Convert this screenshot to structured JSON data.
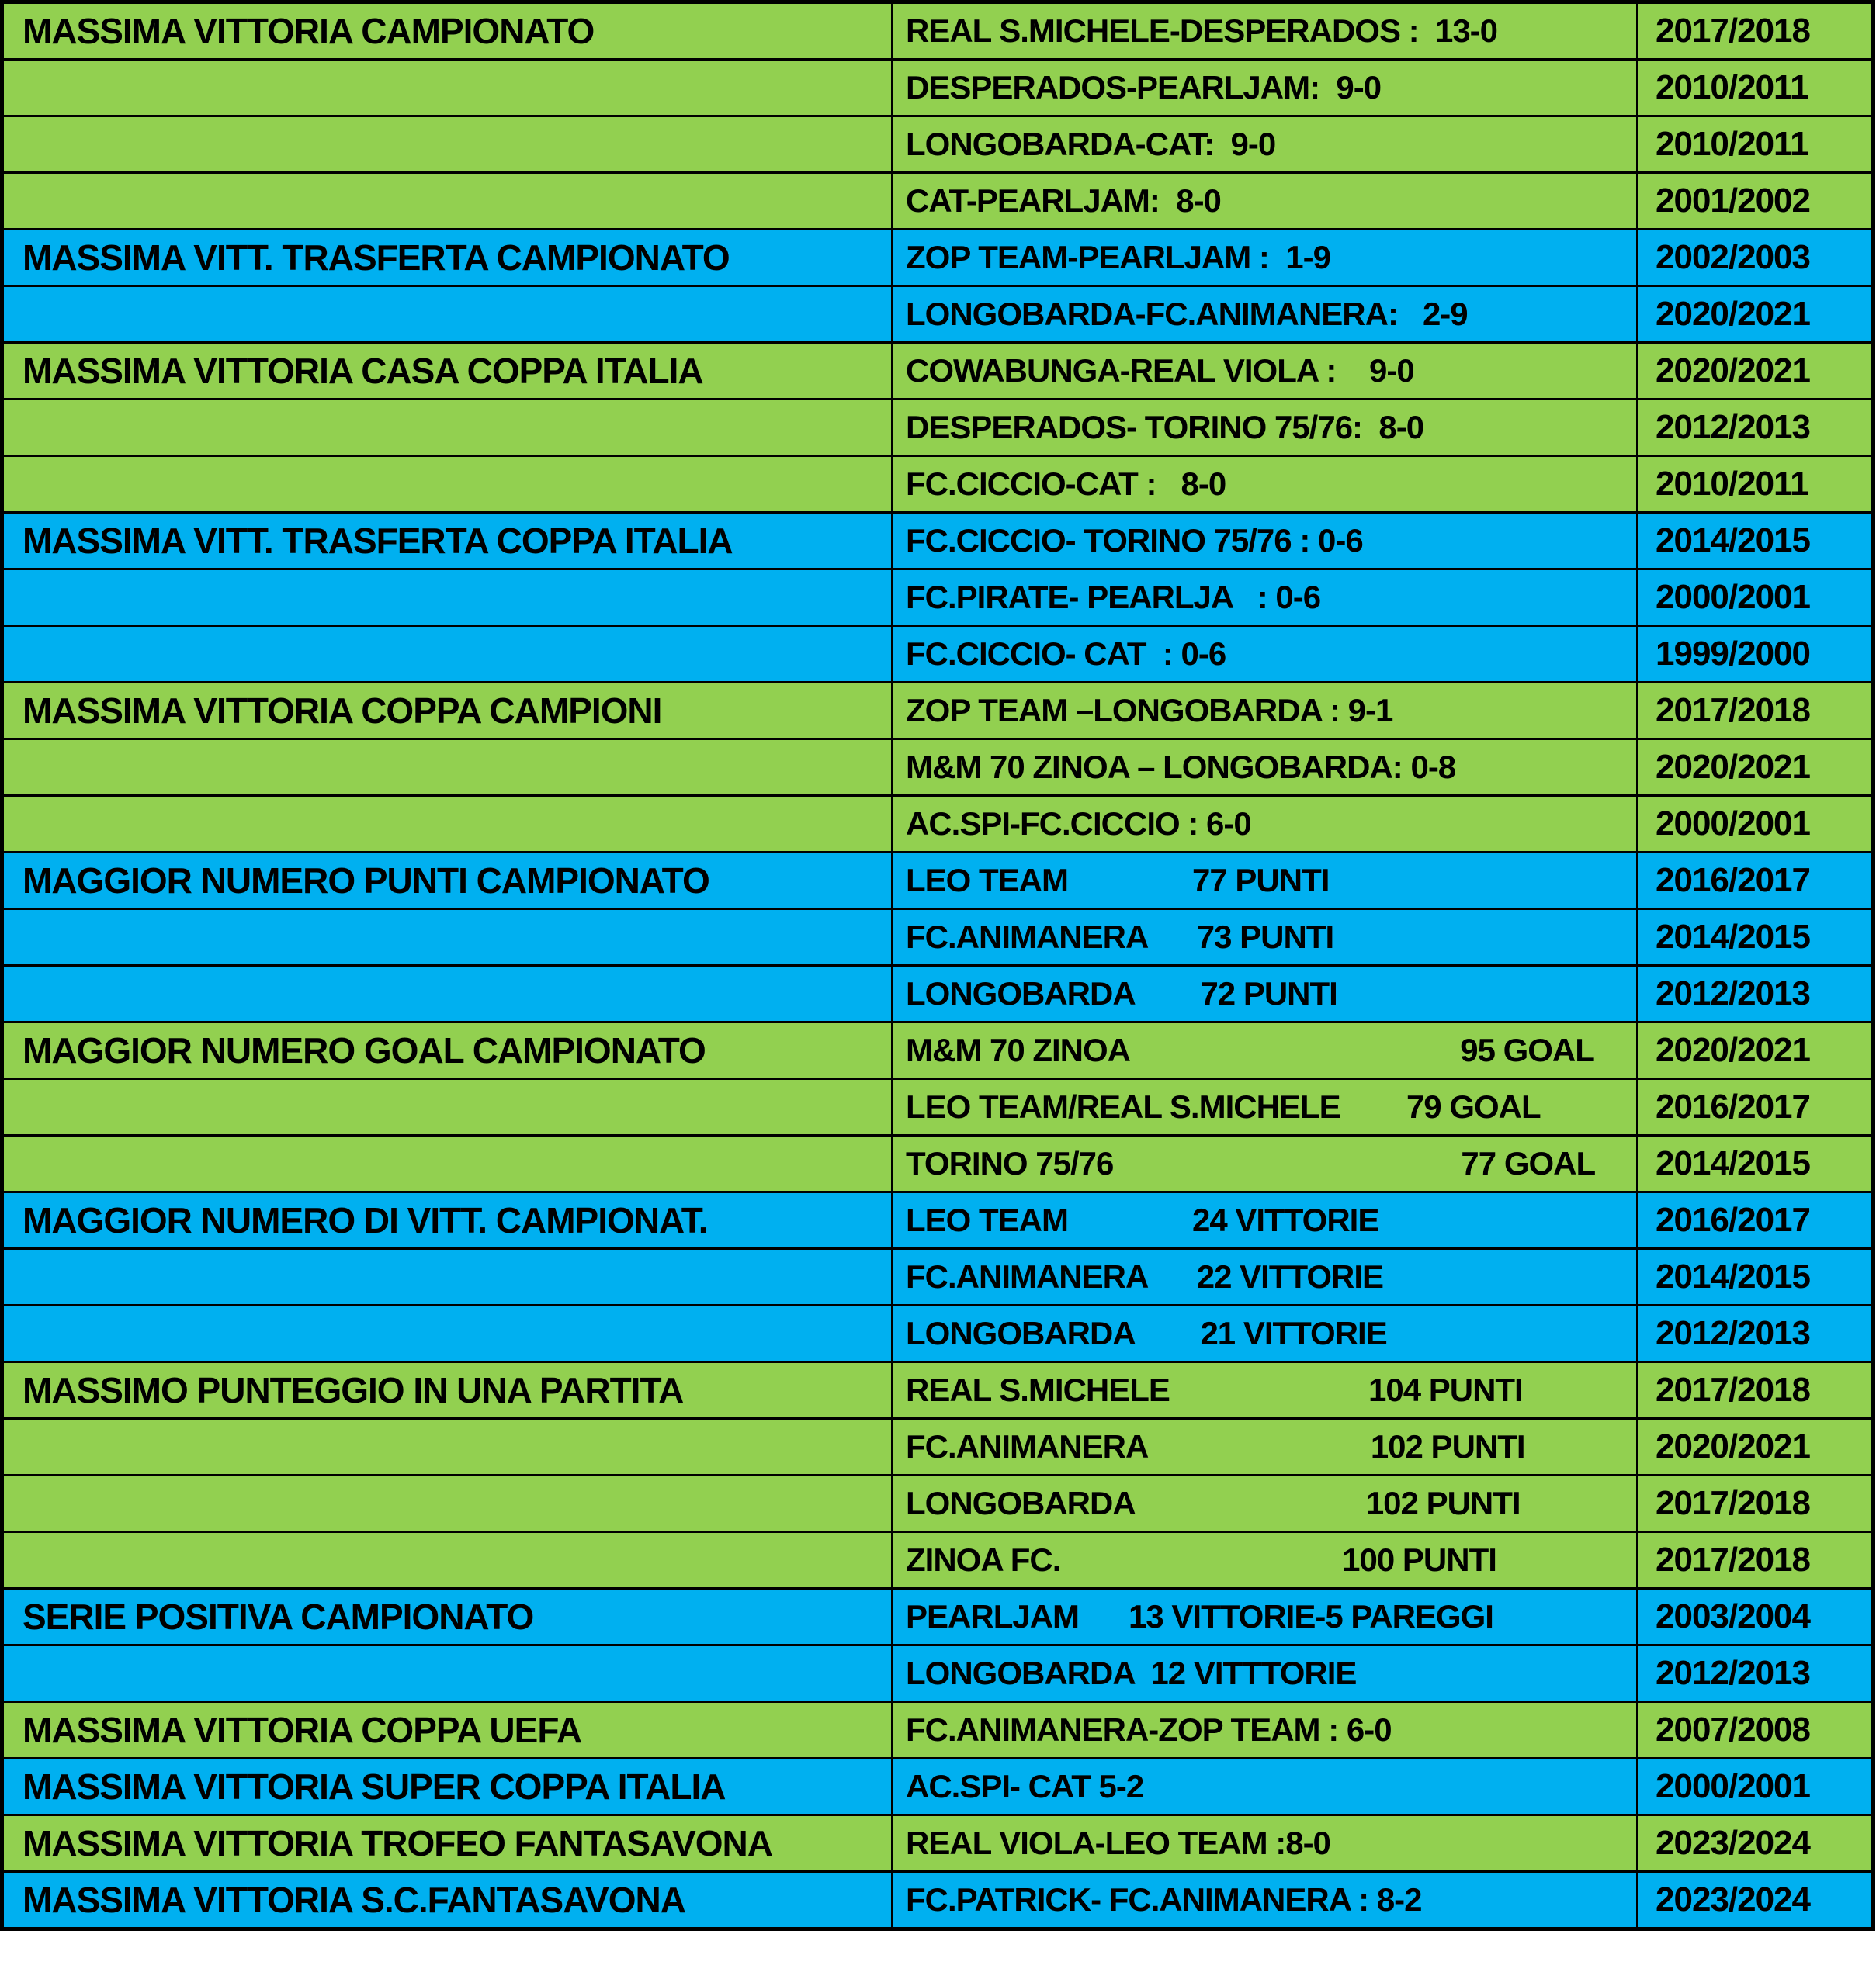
{
  "colors": {
    "green": "#92D050",
    "blue": "#00B0F0",
    "border": "#000000",
    "text": "#000000",
    "page_background": "#FFFFFF"
  },
  "table": {
    "columns": [
      "category",
      "record",
      "season"
    ]
  },
  "groups": [
    {
      "category": "MASSIMA VITTORIA CAMPIONATO",
      "color": "green",
      "rows": [
        {
          "record": "REAL S.MICHELE-DESPERADOS :  13-0",
          "season": "2017/2018"
        },
        {
          "record": "DESPERADOS-PEARLJAM:  9-0",
          "season": "2010/2011"
        },
        {
          "record": "LONGOBARDA-CAT:  9-0",
          "season": "2010/2011"
        },
        {
          "record": "CAT-PEARLJAM:  8-0",
          "season": "2001/2002"
        }
      ]
    },
    {
      "category": "MASSIMA VITT. TRASFERTA CAMPIONATO",
      "color": "blue",
      "rows": [
        {
          "record": "ZOP TEAM-PEARLJAM :  1-9",
          "season": "2002/2003"
        },
        {
          "record": "LONGOBARDA-FC.ANIMANERA:   2-9",
          "season": "2020/2021"
        }
      ]
    },
    {
      "category": "MASSIMA VITTORIA CASA COPPA ITALIA",
      "color": "green",
      "rows": [
        {
          "record": "COWABUNGA-REAL VIOLA :    9-0",
          "season": "2020/2021"
        },
        {
          "record": "DESPERADOS- TORINO 75/76:  8-0",
          "season": "2012/2013"
        },
        {
          "record": "FC.CICCIO-CAT :   8-0",
          "season": "2010/2011"
        }
      ]
    },
    {
      "category": "MASSIMA VITT. TRASFERTA COPPA ITALIA",
      "color": "blue",
      "rows": [
        {
          "record": "FC.CICCIO- TORINO 75/76 : 0-6",
          "season": "2014/2015"
        },
        {
          "record": "FC.PIRATE- PEARLJA   : 0-6",
          "season": "2000/2001"
        },
        {
          "record": "FC.CICCIO- CAT  : 0-6",
          "season": "1999/2000"
        }
      ]
    },
    {
      "category": "MASSIMA VITTORIA COPPA CAMPIONI",
      "color": "green",
      "rows": [
        {
          "record": "ZOP TEAM –LONGOBARDA : 9-1",
          "season": "2017/2018"
        },
        {
          "record": "M&M 70 ZINOA – LONGOBARDA: 0-8",
          "season": "2020/2021"
        },
        {
          "record": "AC.SPI-FC.CICCIO : 6-0",
          "season": "2000/2001"
        }
      ]
    },
    {
      "category": "MAGGIOR NUMERO PUNTI CAMPIONATO",
      "color": "blue",
      "rows": [
        {
          "record": "LEO TEAM               77 PUNTI",
          "season": "2016/2017"
        },
        {
          "record": "FC.ANIMANERA      73 PUNTI",
          "season": "2014/2015"
        },
        {
          "record": "LONGOBARDA        72 PUNTI",
          "season": "2012/2013"
        }
      ]
    },
    {
      "category": "MAGGIOR NUMERO GOAL CAMPIONATO",
      "color": "green",
      "rows": [
        {
          "record": "M&M 70 ZINOA                                        95 GOAL",
          "season": "2020/2021"
        },
        {
          "record": "LEO TEAM/REAL S.MICHELE        79 GOAL",
          "season": "2016/2017"
        },
        {
          "record": "TORINO 75/76                                          77 GOAL",
          "season": "2014/2015"
        }
      ]
    },
    {
      "category": "MAGGIOR NUMERO DI VITT. CAMPIONAT.",
      "color": "blue",
      "rows": [
        {
          "record": "LEO TEAM               24 VITTORIE",
          "season": "2016/2017"
        },
        {
          "record": "FC.ANIMANERA      22 VITTORIE",
          "season": "2014/2015"
        },
        {
          "record": "LONGOBARDA        21 VITTORIE",
          "season": "2012/2013"
        }
      ]
    },
    {
      "category": "MASSIMO PUNTEGGIO IN UNA PARTITA",
      "color": "green",
      "rows": [
        {
          "record": "REAL S.MICHELE                        104 PUNTI",
          "season": "2017/2018"
        },
        {
          "record": "FC.ANIMANERA                           102 PUNTI",
          "season": "2020/2021"
        },
        {
          "record": "LONGOBARDA                            102 PUNTI",
          "season": "2017/2018"
        },
        {
          "record": "ZINOA FC.                                  100 PUNTI",
          "season": "2017/2018"
        }
      ]
    },
    {
      "category": "SERIE POSITIVA CAMPIONATO",
      "color": "blue",
      "rows": [
        {
          "record": "PEARLJAM      13 VITTORIE-5 PAREGGI",
          "season": "2003/2004"
        },
        {
          "record": "LONGOBARDA  12 VITTTORIE",
          "season": "2012/2013"
        }
      ]
    },
    {
      "category": "MASSIMA VITTORIA COPPA UEFA",
      "color": "green",
      "rows": [
        {
          "record": "FC.ANIMANERA-ZOP TEAM : 6-0",
          "season": "2007/2008"
        }
      ]
    },
    {
      "category": "MASSIMA VITTORIA SUPER COPPA ITALIA",
      "color": "blue",
      "rows": [
        {
          "record": "AC.SPI- CAT 5-2",
          "season": "2000/2001"
        }
      ]
    },
    {
      "category": "MASSIMA VITTORIA TROFEO FANTASAVONA",
      "color": "green",
      "rows": [
        {
          "record": "REAL VIOLA-LEO TEAM :8-0",
          "season": "2023/2024"
        }
      ]
    },
    {
      "category": "MASSIMA VITTORIA S.C.FANTASAVONA",
      "color": "blue",
      "rows": [
        {
          "record": "FC.PATRICK- FC.ANIMANERA : 8-2",
          "season": "2023/2024"
        }
      ]
    }
  ]
}
